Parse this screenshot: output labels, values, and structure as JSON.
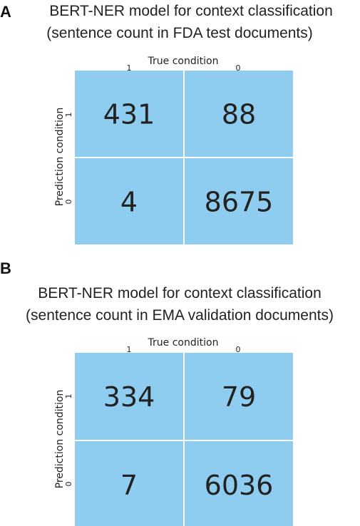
{
  "colors": {
    "cell": "#8ecdef",
    "background": "#ffffff",
    "divider": "#ffffff",
    "text": "#222222"
  },
  "chart_data": [
    {
      "type": "heatmap",
      "panel_label": "A",
      "title_line1": "BERT-NER model for context classification",
      "title_line2": "(sentence count in FDA test documents)",
      "xlabel": "True condition",
      "ylabel": "Prediction condition",
      "x_ticks": [
        "1",
        "0"
      ],
      "y_ticks": [
        "1",
        "0"
      ],
      "values": [
        [
          431,
          88
        ],
        [
          4,
          8675
        ]
      ]
    },
    {
      "type": "heatmap",
      "panel_label": "B",
      "title_line1": "BERT-NER model for context classification",
      "title_line2": "(sentence count in EMA validation documents)",
      "xlabel": "True condition",
      "ylabel": "Prediction condition",
      "x_ticks": [
        "1",
        "0"
      ],
      "y_ticks": [
        "1",
        "0"
      ],
      "values": [
        [
          334,
          79
        ],
        [
          7,
          6036
        ]
      ]
    }
  ]
}
